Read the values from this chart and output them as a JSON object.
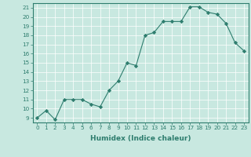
{
  "x": [
    0,
    1,
    2,
    3,
    4,
    5,
    6,
    7,
    8,
    9,
    10,
    11,
    12,
    13,
    14,
    15,
    16,
    17,
    18,
    19,
    20,
    21,
    22,
    23
  ],
  "y": [
    9,
    9.8,
    8.8,
    11,
    11,
    11,
    10.5,
    10.2,
    12,
    13,
    15,
    14.7,
    18.0,
    18.3,
    19.5,
    19.5,
    19.5,
    21.1,
    21.1,
    20.5,
    20.3,
    19.3,
    17.2,
    16.3
  ],
  "xlabel": "Humidex (Indice chaleur)",
  "xlim": [
    -0.5,
    23.5
  ],
  "ylim": [
    8.5,
    21.5
  ],
  "yticks": [
    9,
    10,
    11,
    12,
    13,
    14,
    15,
    16,
    17,
    18,
    19,
    20,
    21
  ],
  "xticks": [
    0,
    1,
    2,
    3,
    4,
    5,
    6,
    7,
    8,
    9,
    10,
    11,
    12,
    13,
    14,
    15,
    16,
    17,
    18,
    19,
    20,
    21,
    22,
    23
  ],
  "line_color": "#2e7d6e",
  "bg_color": "#c8e8e0",
  "grid_color": "#ffffff",
  "label_fontsize": 6.5,
  "tick_fontsize": 5.2
}
